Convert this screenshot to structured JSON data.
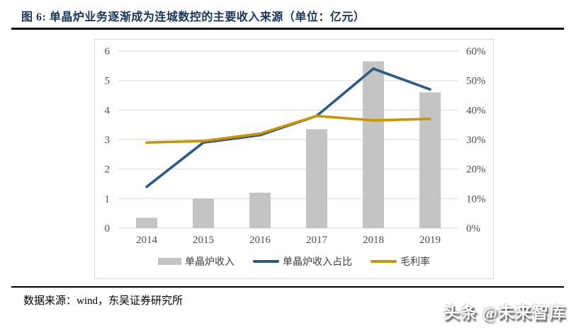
{
  "figure": {
    "title": "图 6: 单晶炉业务逐渐成为连城数控的主要收入来源（单位：亿元）",
    "source": "数据来源：wind，东吴证券研究所",
    "watermark": "头条 @未来智库"
  },
  "chart_data": {
    "type": "bar+line combo",
    "categories": [
      "2014",
      "2015",
      "2016",
      "2017",
      "2018",
      "2019"
    ],
    "series": [
      {
        "name": "单晶炉收入",
        "type": "bar",
        "axis": "left",
        "color": "#C4C4C4",
        "values": [
          0.35,
          1.0,
          1.2,
          3.35,
          5.65,
          4.6
        ]
      },
      {
        "name": "单晶炉收入占比",
        "type": "line",
        "axis": "right",
        "color": "#2B5A87",
        "values": [
          14,
          29,
          31.5,
          38,
          54,
          47
        ]
      },
      {
        "name": "毛利率",
        "type": "line",
        "axis": "right",
        "color": "#C89503",
        "values": [
          29,
          29.5,
          32,
          38,
          36.5,
          37
        ]
      }
    ],
    "left_axis": {
      "min": 0,
      "max": 6,
      "step": 1,
      "ticks": [
        "0",
        "1",
        "2",
        "3",
        "4",
        "5",
        "6"
      ]
    },
    "right_axis": {
      "min": 0,
      "max": 60,
      "step": 10,
      "ticks": [
        "0%",
        "10%",
        "20%",
        "30%",
        "40%",
        "50%",
        "60%"
      ],
      "unit": "%"
    },
    "grid": true,
    "grid_color": "#DDDDDD",
    "legend_position": "bottom",
    "title": "图 6: 单晶炉业务逐渐成为连城数控的主要收入来源（单位：亿元）",
    "xlabel": "",
    "ylabel_left": "亿元",
    "ylabel_right": "%"
  },
  "colors": {
    "title_text": "#17365D",
    "rule": "#000000",
    "chart_border": "#D9D9D9",
    "axis_text": "#4D4D4D"
  }
}
